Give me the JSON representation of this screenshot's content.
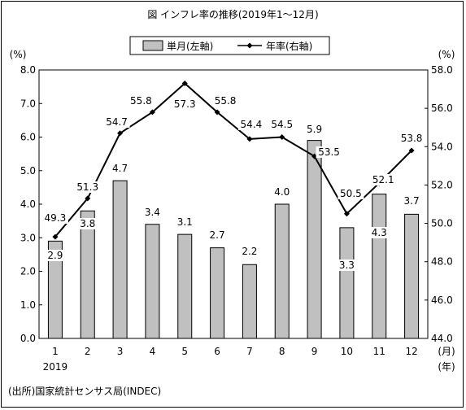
{
  "chart_data": {
    "type": "bar",
    "title": "図 インフレ率の推移(2019年1～12月)",
    "categories": [
      "1",
      "2",
      "3",
      "4",
      "5",
      "6",
      "7",
      "8",
      "9",
      "10",
      "11",
      "12"
    ],
    "x_unit": "(月)",
    "x_year_label": "2019",
    "x_year_unit": "(年)",
    "left_axis_unit": "(%)",
    "right_axis_unit": "(%)",
    "left_ylim": [
      0,
      8
    ],
    "left_ticks": [
      "0.0",
      "1.0",
      "2.0",
      "3.0",
      "4.0",
      "5.0",
      "6.0",
      "7.0",
      "8.0"
    ],
    "right_ylim": [
      44,
      58
    ],
    "right_ticks": [
      "44.0",
      "46.0",
      "48.0",
      "50.0",
      "52.0",
      "54.0",
      "56.0",
      "58.0"
    ],
    "legend_position": "top-center",
    "series": [
      {
        "name": "単月(左軸)",
        "type": "bar",
        "axis": "left",
        "color": "#c0c0c0",
        "values": [
          2.9,
          3.8,
          4.7,
          3.4,
          3.1,
          2.7,
          2.2,
          4.0,
          5.9,
          3.3,
          4.3,
          3.7
        ],
        "labels": [
          "2.9",
          "3.8",
          "4.7",
          "3.4",
          "3.1",
          "2.7",
          "2.2",
          "4.0",
          "5.9",
          "3.3",
          "4.3",
          "3.7"
        ]
      },
      {
        "name": "年率(右軸)",
        "type": "line",
        "axis": "right",
        "color": "#000000",
        "values": [
          49.3,
          51.3,
          54.7,
          55.8,
          57.3,
          55.8,
          54.4,
          54.5,
          53.5,
          50.5,
          52.1,
          53.8
        ],
        "labels": [
          "49.3",
          "51.3",
          "54.7",
          "55.8",
          "57.3",
          "55.8",
          "54.4",
          "54.5",
          "53.5",
          "50.5",
          "52.1",
          "53.8"
        ]
      }
    ],
    "source": "(出所)国家統計センサス局(INDEC)"
  }
}
